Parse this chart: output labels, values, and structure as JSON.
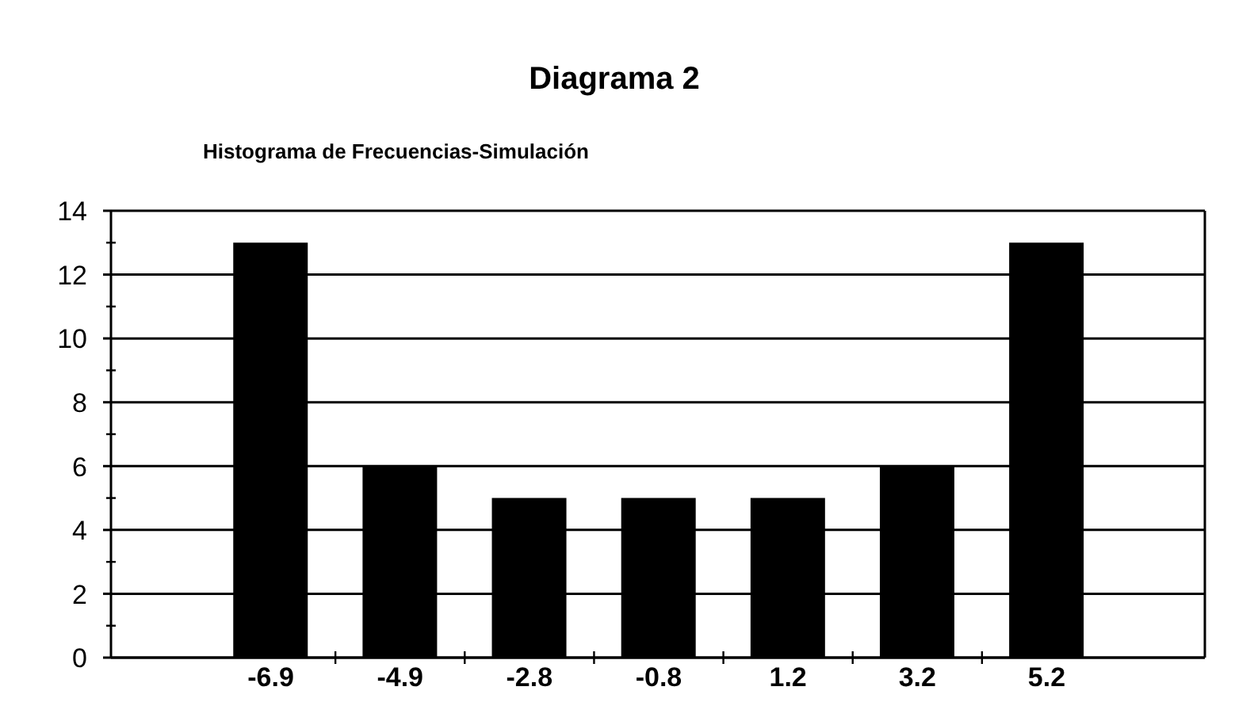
{
  "chart_data": {
    "type": "bar",
    "title": "Diagrama 2",
    "subtitle": "Histograma de Frecuencias-Simulación",
    "categories": [
      "-6.9",
      "-4.9",
      "-2.8",
      "-0.8",
      "1.2",
      "3.2",
      "5.2"
    ],
    "values": [
      13,
      6,
      5,
      5,
      5,
      6,
      13
    ],
    "color": "#000000",
    "ylim": [
      0,
      14
    ],
    "yticks": [
      0,
      {
        "value": 1,
        "label": null
      },
      2,
      {
        "value": 3,
        "label": null
      },
      4,
      {
        "value": 5,
        "label": null
      },
      6,
      {
        "value": 7,
        "label": null
      },
      8,
      {
        "value": 9,
        "label": null
      },
      10,
      {
        "value": 11,
        "label": null
      },
      12,
      {
        "value": 13,
        "label": null
      },
      14
    ],
    "grid": "y"
  }
}
